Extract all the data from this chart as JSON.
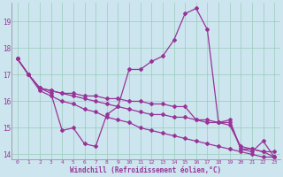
{
  "xlabel": "Windchill (Refroidissement éolien,°C)",
  "bg_color": "#cce5ee",
  "grid_color": "#99ccbb",
  "line_color": "#993399",
  "spine_color": "#888888",
  "xlim": [
    -0.5,
    23.5
  ],
  "ylim": [
    13.8,
    19.7
  ],
  "yticks": [
    14,
    15,
    16,
    17,
    18,
    19
  ],
  "xticks": [
    0,
    1,
    2,
    3,
    4,
    5,
    6,
    7,
    8,
    9,
    10,
    11,
    12,
    13,
    14,
    15,
    16,
    17,
    18,
    19,
    20,
    21,
    22,
    23
  ],
  "line1_x": [
    0,
    1,
    2,
    3,
    4,
    5,
    6,
    7,
    8,
    9,
    10,
    11,
    12,
    13,
    14,
    15,
    16,
    17,
    18,
    19,
    20,
    21,
    22,
    23
  ],
  "line1_y": [
    17.6,
    17.0,
    16.5,
    16.3,
    14.9,
    15.0,
    14.4,
    14.3,
    15.5,
    15.8,
    17.2,
    17.2,
    17.5,
    17.7,
    18.3,
    19.3,
    19.5,
    18.7,
    15.2,
    15.3,
    14.2,
    14.1,
    14.5,
    13.9
  ],
  "line2_x": [
    0,
    1,
    2,
    3,
    4,
    5,
    6,
    7,
    8,
    9,
    10,
    11,
    12,
    13,
    14,
    15,
    16,
    17,
    18,
    19,
    20,
    21,
    22,
    23
  ],
  "line2_y": [
    17.6,
    17.0,
    16.5,
    16.4,
    16.3,
    16.3,
    16.2,
    16.2,
    16.1,
    16.1,
    16.0,
    16.0,
    15.9,
    15.9,
    15.8,
    15.8,
    15.3,
    15.3,
    15.2,
    15.2,
    14.2,
    14.2,
    14.1,
    14.1
  ],
  "line3_x": [
    0,
    1,
    2,
    3,
    4,
    5,
    6,
    7,
    8,
    9,
    10,
    11,
    12,
    13,
    14,
    15,
    16,
    17,
    18,
    19,
    20,
    21,
    22,
    23
  ],
  "line3_y": [
    17.6,
    17.0,
    16.5,
    16.4,
    16.3,
    16.2,
    16.1,
    16.0,
    15.9,
    15.8,
    15.7,
    15.6,
    15.5,
    15.5,
    15.4,
    15.4,
    15.3,
    15.2,
    15.2,
    15.1,
    14.3,
    14.2,
    14.1,
    13.9
  ],
  "line4_x": [
    0,
    1,
    2,
    3,
    4,
    5,
    6,
    7,
    8,
    9,
    10,
    11,
    12,
    13,
    14,
    15,
    16,
    17,
    18,
    19,
    20,
    21,
    22,
    23
  ],
  "line4_y": [
    17.6,
    17.0,
    16.4,
    16.2,
    16.0,
    15.9,
    15.7,
    15.6,
    15.4,
    15.3,
    15.2,
    15.0,
    14.9,
    14.8,
    14.7,
    14.6,
    14.5,
    14.4,
    14.3,
    14.2,
    14.1,
    14.0,
    13.9,
    13.9
  ]
}
